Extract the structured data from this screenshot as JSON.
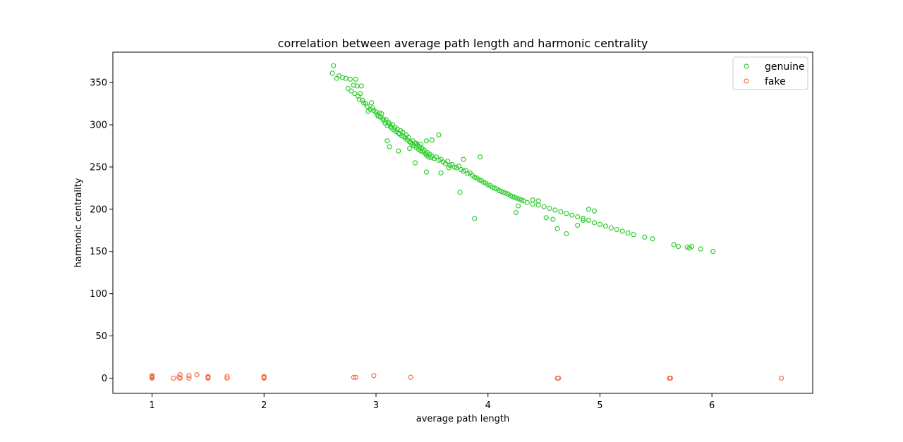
{
  "chart_data": {
    "type": "scatter",
    "title": "correlation between average path length and harmonic centrality",
    "xlabel": "average path length",
    "ylabel": "harmonic centrality",
    "xlim": [
      0.65,
      6.9
    ],
    "ylim": [
      -18,
      386
    ],
    "xticks": [
      1,
      2,
      3,
      4,
      5,
      6
    ],
    "yticks": [
      0,
      50,
      100,
      150,
      200,
      250,
      300,
      350
    ],
    "grid": false,
    "legend_position": "top-right",
    "series": [
      {
        "name": "genuine",
        "color": "#33cc33",
        "marker": "hollow-circle",
        "points": [
          [
            2.62,
            370
          ],
          [
            2.61,
            361
          ],
          [
            2.65,
            355
          ],
          [
            2.67,
            358
          ],
          [
            2.7,
            356
          ],
          [
            2.73,
            355
          ],
          [
            2.77,
            354
          ],
          [
            2.82,
            354
          ],
          [
            2.75,
            343
          ],
          [
            2.78,
            340
          ],
          [
            2.8,
            347
          ],
          [
            2.83,
            346
          ],
          [
            2.87,
            346
          ],
          [
            2.81,
            337
          ],
          [
            2.84,
            334
          ],
          [
            2.86,
            337
          ],
          [
            2.85,
            330
          ],
          [
            2.88,
            329
          ],
          [
            2.89,
            326
          ],
          [
            2.91,
            325
          ],
          [
            2.92,
            322
          ],
          [
            2.93,
            316
          ],
          [
            2.95,
            318
          ],
          [
            2.96,
            326
          ],
          [
            2.97,
            320
          ],
          [
            2.98,
            317
          ],
          [
            3.0,
            315
          ],
          [
            3.01,
            312
          ],
          [
            3.02,
            310
          ],
          [
            3.03,
            314
          ],
          [
            3.04,
            309
          ],
          [
            3.05,
            313
          ],
          [
            3.06,
            307
          ],
          [
            3.07,
            305
          ],
          [
            3.08,
            302
          ],
          [
            3.09,
            306
          ],
          [
            3.1,
            299
          ],
          [
            3.11,
            303
          ],
          [
            3.12,
            301
          ],
          [
            3.13,
            298
          ],
          [
            3.14,
            296
          ],
          [
            3.15,
            300
          ],
          [
            3.16,
            294
          ],
          [
            3.17,
            297
          ],
          [
            3.18,
            292
          ],
          [
            3.19,
            295
          ],
          [
            3.2,
            290
          ],
          [
            3.21,
            289
          ],
          [
            3.22,
            293
          ],
          [
            3.23,
            287
          ],
          [
            3.24,
            291
          ],
          [
            3.25,
            286
          ],
          [
            3.26,
            284
          ],
          [
            3.27,
            288
          ],
          [
            3.28,
            282
          ],
          [
            3.29,
            285
          ],
          [
            3.3,
            280
          ],
          [
            3.31,
            279
          ],
          [
            3.32,
            277
          ],
          [
            3.33,
            281
          ],
          [
            3.34,
            275
          ],
          [
            3.35,
            278
          ],
          [
            3.36,
            273
          ],
          [
            3.37,
            276
          ],
          [
            3.38,
            271
          ],
          [
            3.39,
            274
          ],
          [
            3.4,
            269
          ],
          [
            3.41,
            272
          ],
          [
            3.42,
            268
          ],
          [
            3.43,
            270
          ],
          [
            3.44,
            266
          ],
          [
            3.45,
            264
          ],
          [
            3.46,
            267
          ],
          [
            3.47,
            262
          ],
          [
            3.48,
            265
          ],
          [
            3.49,
            261
          ],
          [
            3.5,
            263
          ],
          [
            3.52,
            260
          ],
          [
            3.54,
            262
          ],
          [
            3.56,
            258
          ],
          [
            3.58,
            259
          ],
          [
            3.6,
            256
          ],
          [
            3.62,
            254
          ],
          [
            3.64,
            257
          ],
          [
            3.66,
            252
          ],
          [
            3.68,
            253
          ],
          [
            3.7,
            250
          ],
          [
            3.72,
            249
          ],
          [
            3.74,
            251
          ],
          [
            3.76,
            247
          ],
          [
            3.78,
            245
          ],
          [
            3.8,
            246
          ],
          [
            3.82,
            242
          ],
          [
            3.84,
            243
          ],
          [
            3.86,
            240
          ],
          [
            3.88,
            238
          ],
          [
            3.9,
            237
          ],
          [
            3.92,
            235
          ],
          [
            3.94,
            234
          ],
          [
            3.96,
            232
          ],
          [
            3.98,
            231
          ],
          [
            4.0,
            229
          ],
          [
            4.02,
            228
          ],
          [
            4.04,
            226
          ],
          [
            4.06,
            225
          ],
          [
            4.08,
            224
          ],
          [
            4.1,
            222
          ],
          [
            4.12,
            221
          ],
          [
            4.14,
            220
          ],
          [
            4.16,
            219
          ],
          [
            4.18,
            218
          ],
          [
            4.2,
            216
          ],
          [
            4.22,
            215
          ],
          [
            4.24,
            214
          ],
          [
            4.26,
            213
          ],
          [
            4.28,
            212
          ],
          [
            4.3,
            211
          ],
          [
            4.32,
            210
          ],
          [
            4.35,
            208
          ],
          [
            4.4,
            206
          ],
          [
            4.45,
            205
          ],
          [
            4.5,
            203
          ],
          [
            4.55,
            201
          ],
          [
            4.6,
            199
          ],
          [
            4.65,
            197
          ],
          [
            4.7,
            195
          ],
          [
            4.75,
            193
          ],
          [
            4.8,
            191
          ],
          [
            4.85,
            189
          ],
          [
            4.9,
            187
          ],
          [
            4.95,
            184
          ],
          [
            5.0,
            182
          ],
          [
            5.05,
            180
          ],
          [
            5.1,
            178
          ],
          [
            5.15,
            176
          ],
          [
            5.2,
            174
          ],
          [
            5.25,
            172
          ],
          [
            5.3,
            170
          ],
          [
            5.4,
            167
          ],
          [
            5.47,
            165
          ],
          [
            5.66,
            158
          ],
          [
            5.7,
            156
          ],
          [
            5.78,
            155
          ],
          [
            5.8,
            154
          ],
          [
            5.82,
            156
          ],
          [
            5.9,
            153
          ],
          [
            6.01,
            150
          ],
          [
            3.1,
            281
          ],
          [
            3.12,
            274
          ],
          [
            3.2,
            269
          ],
          [
            3.35,
            255
          ],
          [
            3.45,
            244
          ],
          [
            3.56,
            288
          ],
          [
            3.93,
            262
          ],
          [
            3.88,
            189
          ],
          [
            3.75,
            220
          ],
          [
            4.25,
            196
          ],
          [
            4.27,
            204
          ],
          [
            4.62,
            177
          ],
          [
            4.7,
            171
          ],
          [
            4.9,
            200
          ],
          [
            4.95,
            198
          ],
          [
            4.52,
            190
          ],
          [
            4.58,
            188
          ],
          [
            4.8,
            181
          ],
          [
            4.85,
            187
          ],
          [
            4.4,
            211
          ],
          [
            4.45,
            210
          ],
          [
            3.5,
            282
          ],
          [
            3.45,
            281
          ],
          [
            3.65,
            249
          ],
          [
            3.78,
            259
          ],
          [
            3.4,
            277
          ],
          [
            3.58,
            243
          ],
          [
            3.36,
            278
          ],
          [
            3.3,
            272
          ]
        ]
      },
      {
        "name": "fake",
        "color": "#f0704a",
        "marker": "hollow-circle",
        "points": [
          [
            1.0,
            0
          ],
          [
            1.0,
            1
          ],
          [
            1.0,
            2
          ],
          [
            1.0,
            3
          ],
          [
            1.19,
            0
          ],
          [
            1.24,
            1
          ],
          [
            1.25,
            4
          ],
          [
            1.25,
            0
          ],
          [
            1.33,
            3
          ],
          [
            1.33,
            0
          ],
          [
            1.4,
            4
          ],
          [
            1.5,
            0
          ],
          [
            1.5,
            1
          ],
          [
            1.5,
            2
          ],
          [
            1.67,
            0
          ],
          [
            1.67,
            2
          ],
          [
            2.0,
            0
          ],
          [
            2.0,
            1
          ],
          [
            2.0,
            2
          ],
          [
            2.8,
            1
          ],
          [
            2.82,
            1
          ],
          [
            2.98,
            3
          ],
          [
            3.31,
            1
          ],
          [
            4.62,
            0
          ],
          [
            4.63,
            0
          ],
          [
            5.62,
            0
          ],
          [
            5.63,
            0
          ],
          [
            6.62,
            0
          ]
        ]
      }
    ]
  }
}
